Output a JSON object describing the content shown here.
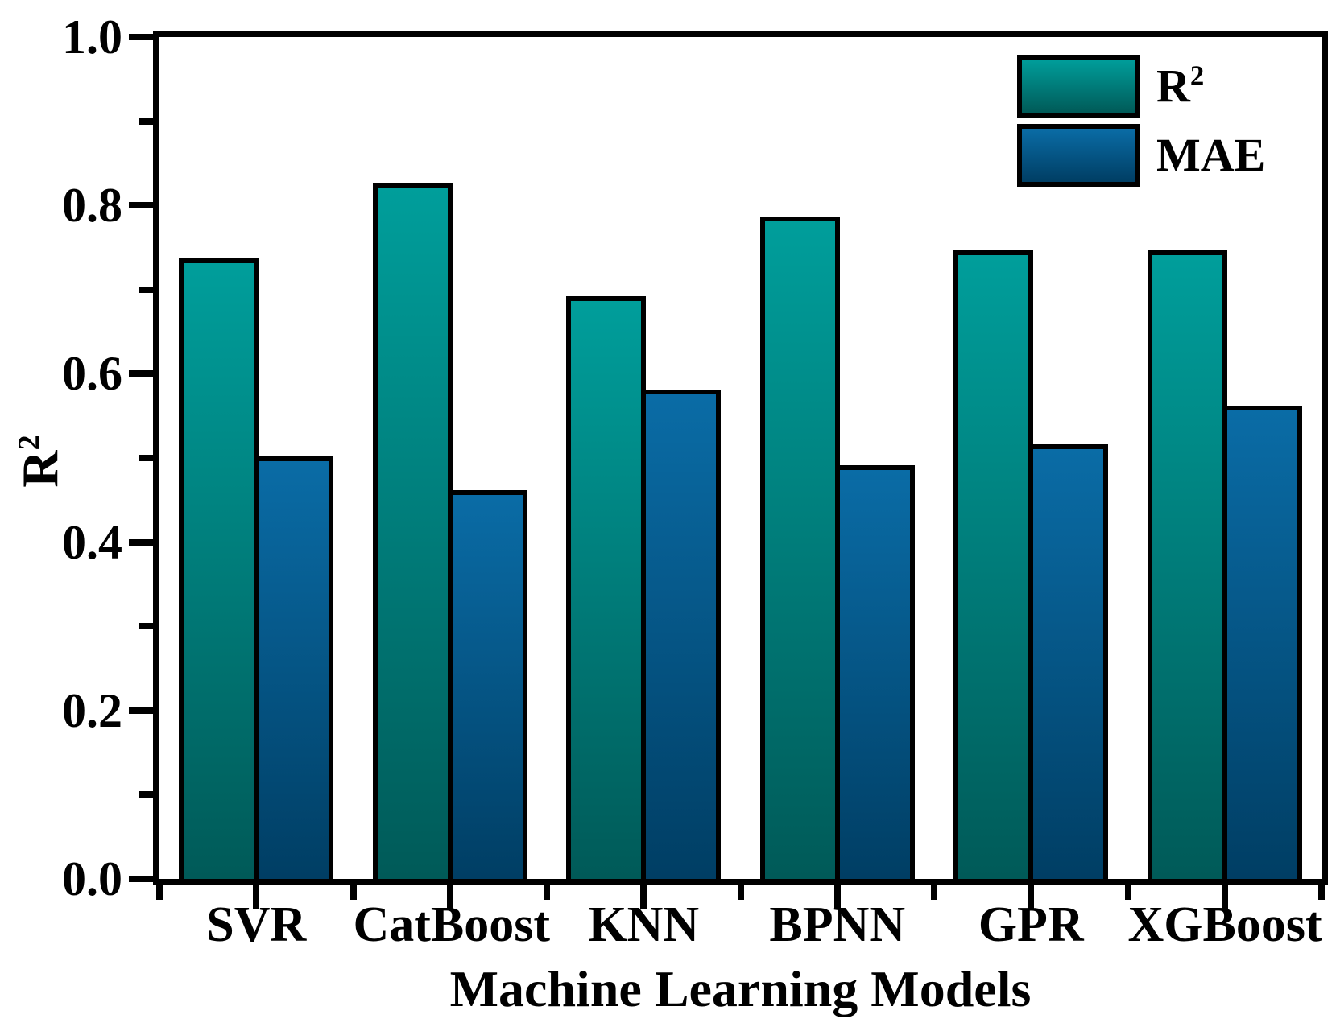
{
  "figure": {
    "background": "#ffffff",
    "frame_color": "#000000"
  },
  "chart_data": {
    "type": "bar",
    "title": "",
    "categories": [
      "SVR",
      "CatBoost",
      "KNN",
      "BPNN",
      "GPR",
      "XGBoost"
    ],
    "series": [
      {
        "name": "R²",
        "label_base": "R",
        "label_sup": "2",
        "values": [
          0.73,
          0.82,
          0.685,
          0.78,
          0.74,
          0.74
        ],
        "color_top": "#009E9B",
        "color_bottom": "#005A58"
      },
      {
        "name": "MAE",
        "label_base": "MAE",
        "label_sup": "",
        "values": [
          0.495,
          0.455,
          0.575,
          0.485,
          0.51,
          0.555
        ],
        "color_top": "#0A6CA6",
        "color_bottom": "#003E64"
      }
    ],
    "xlabel": "Machine Learning Models",
    "ylabel_base": "R",
    "ylabel_sup": "2",
    "ylim": [
      0.0,
      1.0
    ],
    "ytick_labels": [
      "0.0",
      "0.2",
      "0.4",
      "0.6",
      "0.8",
      "1.0"
    ],
    "ytick_values": [
      0.0,
      0.2,
      0.4,
      0.6,
      0.8,
      1.0
    ],
    "grid": false,
    "legend_position": "top-right"
  }
}
